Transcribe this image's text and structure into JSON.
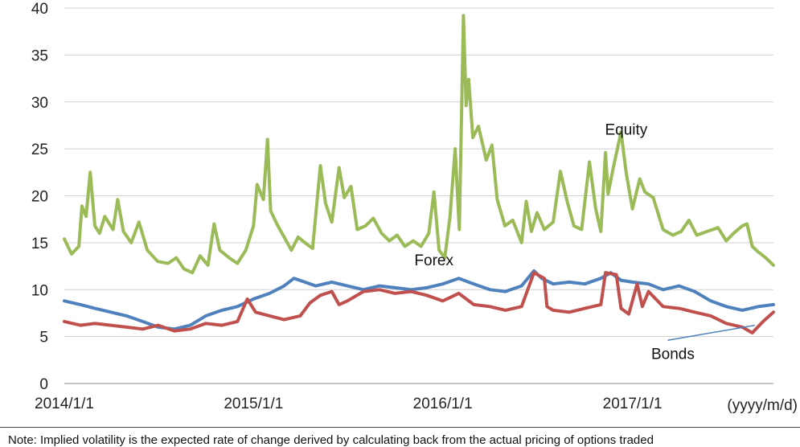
{
  "chart_data": {
    "type": "line",
    "title": "",
    "xlabel": "",
    "ylabel": "",
    "x_unit": "(yyyy/m/d)",
    "x_range": [
      "2014/1/1",
      "2017/9/30"
    ],
    "x_ticks": [
      "2014/1/1",
      "2015/1/1",
      "2016/1/1",
      "2017/1/1"
    ],
    "ylim": [
      0,
      40
    ],
    "y_ticks": [
      "0",
      "5",
      "10",
      "15",
      "20",
      "25",
      "30",
      "35",
      "40"
    ],
    "grid": true,
    "legend": "inline labels",
    "series": [
      {
        "name": "Equity",
        "color": "#9bbb59",
        "points": [
          [
            "2014/1/1",
            15.4
          ],
          [
            "2014/1/15",
            13.8
          ],
          [
            "2014/1/29",
            14.6
          ],
          [
            "2014/2/4",
            18.9
          ],
          [
            "2014/2/12",
            17.8
          ],
          [
            "2014/2/20",
            22.5
          ],
          [
            "2014/3/1",
            16.8
          ],
          [
            "2014/3/10",
            16.0
          ],
          [
            "2014/3/20",
            17.8
          ],
          [
            "2014/4/5",
            16.4
          ],
          [
            "2014/4/14",
            19.6
          ],
          [
            "2014/4/25",
            16.2
          ],
          [
            "2014/5/10",
            15.0
          ],
          [
            "2014/5/25",
            17.2
          ],
          [
            "2014/6/10",
            14.2
          ],
          [
            "2014/6/30",
            13.0
          ],
          [
            "2014/7/20",
            12.8
          ],
          [
            "2014/8/5",
            13.4
          ],
          [
            "2014/8/20",
            12.2
          ],
          [
            "2014/9/5",
            11.8
          ],
          [
            "2014/9/20",
            13.6
          ],
          [
            "2014/10/5",
            12.6
          ],
          [
            "2014/10/17",
            17.0
          ],
          [
            "2014/10/28",
            14.2
          ],
          [
            "2014/11/15",
            13.4
          ],
          [
            "2014/12/1",
            12.8
          ],
          [
            "2014/12/17",
            14.2
          ],
          [
            "2015/1/1",
            16.8
          ],
          [
            "2015/1/8",
            21.2
          ],
          [
            "2015/1/20",
            19.6
          ],
          [
            "2015/1/28",
            26.0
          ],
          [
            "2015/2/3",
            18.4
          ],
          [
            "2015/2/15",
            17.0
          ],
          [
            "2015/3/1",
            15.6
          ],
          [
            "2015/3/15",
            14.2
          ],
          [
            "2015/3/28",
            15.6
          ],
          [
            "2015/4/10",
            15.0
          ],
          [
            "2015/4/25",
            14.4
          ],
          [
            "2015/5/10",
            23.2
          ],
          [
            "2015/5/20",
            19.2
          ],
          [
            "2015/6/1",
            17.2
          ],
          [
            "2015/6/15",
            23.0
          ],
          [
            "2015/6/25",
            19.8
          ],
          [
            "2015/7/8",
            21.0
          ],
          [
            "2015/7/20",
            16.4
          ],
          [
            "2015/8/5",
            16.8
          ],
          [
            "2015/8/20",
            17.6
          ],
          [
            "2015/9/5",
            16.0
          ],
          [
            "2015/9/20",
            15.2
          ],
          [
            "2015/10/5",
            15.8
          ],
          [
            "2015/10/20",
            14.6
          ],
          [
            "2015/11/5",
            15.2
          ],
          [
            "2015/11/20",
            14.6
          ],
          [
            "2015/12/5",
            16.0
          ],
          [
            "2015/12/15",
            20.4
          ],
          [
            "2015/12/25",
            14.2
          ],
          [
            "2016/1/5",
            13.4
          ],
          [
            "2016/1/15",
            17.8
          ],
          [
            "2016/1/25",
            25.0
          ],
          [
            "2016/2/2",
            16.4
          ],
          [
            "2016/2/10",
            39.2
          ],
          [
            "2016/2/15",
            29.6
          ],
          [
            "2016/2/20",
            32.4
          ],
          [
            "2016/2/28",
            26.2
          ],
          [
            "2016/3/10",
            27.4
          ],
          [
            "2016/3/25",
            23.8
          ],
          [
            "2016/4/5",
            25.4
          ],
          [
            "2016/4/15",
            19.6
          ],
          [
            "2016/4/30",
            16.8
          ],
          [
            "2016/5/15",
            17.4
          ],
          [
            "2016/6/1",
            15.0
          ],
          [
            "2016/6/10",
            19.4
          ],
          [
            "2016/6/20",
            16.2
          ],
          [
            "2016/7/1",
            18.2
          ],
          [
            "2016/7/15",
            16.4
          ],
          [
            "2016/8/1",
            17.2
          ],
          [
            "2016/8/15",
            22.6
          ],
          [
            "2016/8/28",
            19.4
          ],
          [
            "2016/9/10",
            16.8
          ],
          [
            "2016/9/25",
            16.4
          ],
          [
            "2016/10/10",
            23.6
          ],
          [
            "2016/10/22",
            18.6
          ],
          [
            "2016/11/1",
            16.2
          ],
          [
            "2016/11/10",
            24.6
          ],
          [
            "2016/11/15",
            20.2
          ],
          [
            "2016/11/25",
            23.0
          ],
          [
            "2016/12/10",
            26.8
          ],
          [
            "2016/12/20",
            22.4
          ],
          [
            "2017/1/1",
            18.6
          ],
          [
            "2017/1/15",
            21.8
          ],
          [
            "2017/1/25",
            20.4
          ],
          [
            "2017/2/10",
            19.8
          ],
          [
            "2017/3/1",
            16.4
          ],
          [
            "2017/3/20",
            15.8
          ],
          [
            "2017/4/5",
            16.2
          ],
          [
            "2017/4/20",
            17.4
          ],
          [
            "2017/5/5",
            15.8
          ],
          [
            "2017/5/25",
            16.2
          ],
          [
            "2017/6/15",
            16.6
          ],
          [
            "2017/7/1",
            15.2
          ],
          [
            "2017/7/15",
            16.0
          ],
          [
            "2017/8/1",
            16.8
          ],
          [
            "2017/8/10",
            17.0
          ],
          [
            "2017/8/20",
            14.6
          ],
          [
            "2017/9/1",
            14.0
          ],
          [
            "2017/9/15",
            13.4
          ],
          [
            "2017/9/30",
            12.6
          ]
        ]
      },
      {
        "name": "Forex",
        "color": "#4f81bd",
        "points": [
          [
            "2014/1/1",
            8.8
          ],
          [
            "2014/2/1",
            8.4
          ],
          [
            "2014/3/1",
            8.0
          ],
          [
            "2014/4/1",
            7.6
          ],
          [
            "2014/5/1",
            7.2
          ],
          [
            "2014/6/1",
            6.6
          ],
          [
            "2014/7/1",
            6.0
          ],
          [
            "2014/8/1",
            5.8
          ],
          [
            "2014/9/1",
            6.2
          ],
          [
            "2014/10/1",
            7.2
          ],
          [
            "2014/11/1",
            7.8
          ],
          [
            "2014/12/1",
            8.2
          ],
          [
            "2015/1/1",
            9.0
          ],
          [
            "2015/2/1",
            9.6
          ],
          [
            "2015/3/1",
            10.4
          ],
          [
            "2015/3/20",
            11.2
          ],
          [
            "2015/4/10",
            10.8
          ],
          [
            "2015/5/1",
            10.4
          ],
          [
            "2015/6/1",
            10.8
          ],
          [
            "2015/7/1",
            10.4
          ],
          [
            "2015/8/1",
            10.0
          ],
          [
            "2015/9/1",
            10.4
          ],
          [
            "2015/10/1",
            10.2
          ],
          [
            "2015/11/1",
            10.0
          ],
          [
            "2015/12/1",
            10.2
          ],
          [
            "2016/1/1",
            10.6
          ],
          [
            "2016/2/1",
            11.2
          ],
          [
            "2016/3/1",
            10.6
          ],
          [
            "2016/4/1",
            10.0
          ],
          [
            "2016/5/1",
            9.8
          ],
          [
            "2016/6/1",
            10.4
          ],
          [
            "2016/6/25",
            12.0
          ],
          [
            "2016/7/10",
            11.2
          ],
          [
            "2016/8/1",
            10.6
          ],
          [
            "2016/9/1",
            10.8
          ],
          [
            "2016/10/1",
            10.6
          ],
          [
            "2016/11/1",
            11.2
          ],
          [
            "2016/11/20",
            11.8
          ],
          [
            "2016/12/10",
            11.0
          ],
          [
            "2017/1/1",
            10.8
          ],
          [
            "2017/2/1",
            10.6
          ],
          [
            "2017/3/1",
            10.0
          ],
          [
            "2017/4/1",
            10.4
          ],
          [
            "2017/5/1",
            9.8
          ],
          [
            "2017/6/1",
            8.8
          ],
          [
            "2017/7/1",
            8.2
          ],
          [
            "2017/8/1",
            7.8
          ],
          [
            "2017/9/1",
            8.2
          ],
          [
            "2017/9/30",
            8.4
          ]
        ]
      },
      {
        "name": "Bonds",
        "color": "#c0504d",
        "points": [
          [
            "2014/1/1",
            6.6
          ],
          [
            "2014/2/1",
            6.2
          ],
          [
            "2014/3/1",
            6.4
          ],
          [
            "2014/4/1",
            6.2
          ],
          [
            "2014/5/1",
            6.0
          ],
          [
            "2014/6/1",
            5.8
          ],
          [
            "2014/7/1",
            6.2
          ],
          [
            "2014/8/1",
            5.6
          ],
          [
            "2014/9/1",
            5.8
          ],
          [
            "2014/10/1",
            6.4
          ],
          [
            "2014/11/1",
            6.2
          ],
          [
            "2014/12/1",
            6.6
          ],
          [
            "2014/12/20",
            9.0
          ],
          [
            "2015/1/5",
            7.6
          ],
          [
            "2015/2/1",
            7.2
          ],
          [
            "2015/3/1",
            6.8
          ],
          [
            "2015/4/1",
            7.2
          ],
          [
            "2015/4/20",
            8.6
          ],
          [
            "2015/5/10",
            9.4
          ],
          [
            "2015/6/1",
            9.8
          ],
          [
            "2015/6/15",
            8.4
          ],
          [
            "2015/7/1",
            8.8
          ],
          [
            "2015/8/1",
            9.8
          ],
          [
            "2015/9/1",
            10.0
          ],
          [
            "2015/10/1",
            9.6
          ],
          [
            "2015/11/1",
            9.8
          ],
          [
            "2015/12/1",
            9.4
          ],
          [
            "2016/1/1",
            8.8
          ],
          [
            "2016/2/1",
            9.6
          ],
          [
            "2016/3/1",
            8.4
          ],
          [
            "2016/4/1",
            8.2
          ],
          [
            "2016/5/1",
            7.8
          ],
          [
            "2016/6/1",
            8.2
          ],
          [
            "2016/6/25",
            11.8
          ],
          [
            "2016/7/15",
            11.2
          ],
          [
            "2016/7/20",
            8.2
          ],
          [
            "2016/8/1",
            7.8
          ],
          [
            "2016/9/1",
            7.6
          ],
          [
            "2016/10/1",
            8.0
          ],
          [
            "2016/11/1",
            8.4
          ],
          [
            "2016/11/10",
            11.8
          ],
          [
            "2016/12/1",
            11.6
          ],
          [
            "2016/12/10",
            8.0
          ],
          [
            "2016/12/25",
            7.4
          ],
          [
            "2017/1/10",
            10.6
          ],
          [
            "2017/1/20",
            8.2
          ],
          [
            "2017/2/1",
            9.8
          ],
          [
            "2017/3/1",
            8.2
          ],
          [
            "2017/4/1",
            8.0
          ],
          [
            "2017/5/1",
            7.6
          ],
          [
            "2017/6/1",
            7.2
          ],
          [
            "2017/7/1",
            6.4
          ],
          [
            "2017/8/1",
            6.0
          ],
          [
            "2017/8/20",
            5.4
          ],
          [
            "2017/9/10",
            6.6
          ],
          [
            "2017/9/30",
            7.6
          ]
        ]
      }
    ],
    "annotations": [
      {
        "text": "Equity",
        "x": "2016/12/20",
        "y": 26.5
      },
      {
        "text": "Forex",
        "x": "2015/12/15",
        "y": 12.6
      },
      {
        "text": "Bonds",
        "x": "2017/3/20",
        "y": 2.6
      }
    ]
  },
  "note": "Note: Implied volatility is the expected rate of change derived by calculating back from the actual pricing of options traded"
}
